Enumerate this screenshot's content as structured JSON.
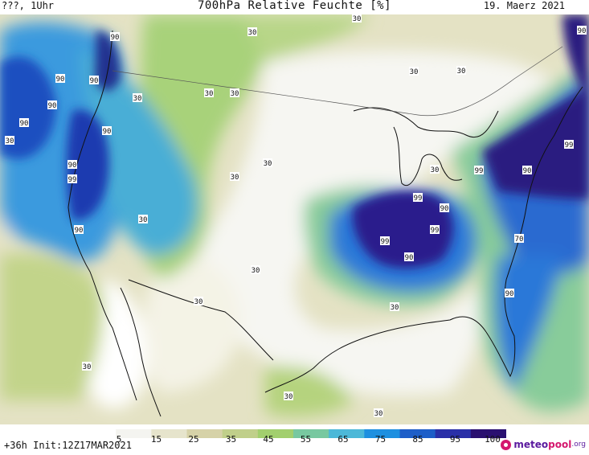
{
  "header": {
    "left": "???, 1Uhr",
    "title": "700hPa Relative Feuchte [%]",
    "date": "19. Maerz 2021"
  },
  "footer": {
    "run": "+36h Init:12Z17MAR2021"
  },
  "colorbar": {
    "ticks": [
      "5",
      "15",
      "25",
      "35",
      "45",
      "55",
      "65",
      "75",
      "85",
      "95",
      "100"
    ],
    "colors": [
      "#ffffff",
      "#f4f4f0",
      "#e6e4cc",
      "#d6d2a8",
      "#c0cf8a",
      "#a2cf6e",
      "#78c8a0",
      "#4cb8d8",
      "#1e90e0",
      "#1d5ec8",
      "#2a30a8",
      "#2a1070"
    ]
  },
  "contour_labels": {
    "v30": "30",
    "v90": "90",
    "v99": "99",
    "v70": "70"
  },
  "logo": {
    "part1": "meteo",
    "part2": "pool",
    "part3": ".org"
  }
}
